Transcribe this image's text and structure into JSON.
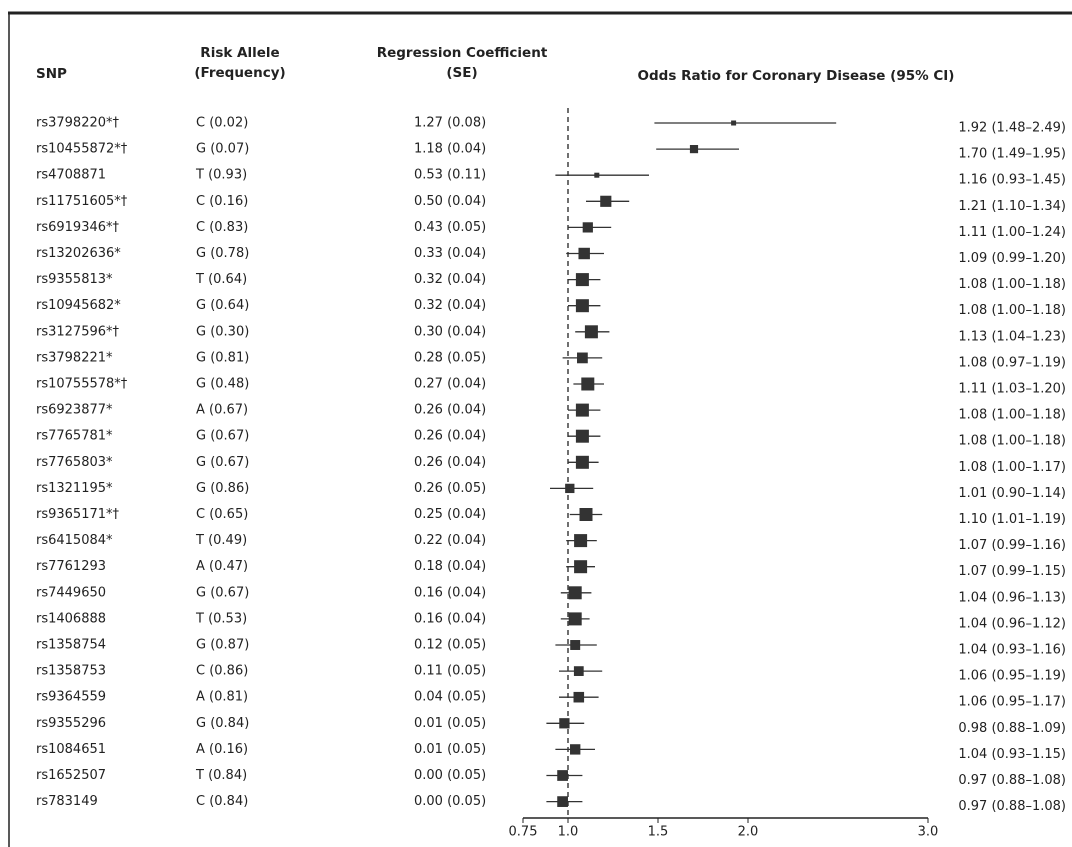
{
  "chart_data": {
    "type": "forest",
    "title": "Odds Ratio for Coronary Disease (95% CI)",
    "headers": {
      "snp": "SNP",
      "allele": [
        "Risk Allele",
        "(Frequency)"
      ],
      "coef": [
        "Regression Coefficient",
        "(SE)"
      ]
    },
    "categories": [
      "rs3798220*†",
      "rs10455872*†",
      "rs4708871",
      "rs11751605*†",
      "rs6919346*†",
      "rs13202636*",
      "rs9355813*",
      "rs10945682*",
      "rs3127596*†",
      "rs3798221*",
      "rs10755578*†",
      "rs6923877*",
      "rs7765781*",
      "rs7765803*",
      "rs1321195*",
      "rs9365171*†",
      "rs6415084*",
      "rs7761293",
      "rs7449650",
      "rs1406888",
      "rs1358754",
      "rs1358753",
      "rs9364559",
      "rs9355296",
      "rs1084651",
      "rs1652507",
      "rs783149"
    ],
    "allele_labels": [
      "C (0.02)",
      "G (0.07)",
      "T (0.93)",
      "C (0.16)",
      "C (0.83)",
      "G (0.78)",
      "T (0.64)",
      "G (0.64)",
      "G (0.30)",
      "G (0.81)",
      "G (0.48)",
      "A (0.67)",
      "G (0.67)",
      "G (0.67)",
      "G (0.86)",
      "C (0.65)",
      "T (0.49)",
      "A (0.47)",
      "G (0.67)",
      "T (0.53)",
      "G (0.87)",
      "C (0.86)",
      "A (0.81)",
      "G (0.84)",
      "A (0.16)",
      "T (0.84)",
      "C (0.84)"
    ],
    "coef_labels": [
      "1.27 (0.08)",
      "1.18 (0.04)",
      "0.53 (0.11)",
      "0.50 (0.04)",
      "0.43 (0.05)",
      "0.33 (0.04)",
      "0.32 (0.04)",
      "0.32 (0.04)",
      "0.30 (0.04)",
      "0.28 (0.05)",
      "0.27 (0.04)",
      "0.26 (0.04)",
      "0.26 (0.04)",
      "0.26 (0.04)",
      "0.26 (0.05)",
      "0.25 (0.04)",
      "0.22 (0.04)",
      "0.18 (0.04)",
      "0.16 (0.04)",
      "0.16 (0.04)",
      "0.12 (0.05)",
      "0.11 (0.05)",
      "0.04 (0.05)",
      "0.01 (0.05)",
      "0.01 (0.05)",
      "0.00 (0.05)",
      "0.00 (0.05)"
    ],
    "values": [
      1.92,
      1.7,
      1.16,
      1.21,
      1.11,
      1.09,
      1.08,
      1.08,
      1.13,
      1.08,
      1.11,
      1.08,
      1.08,
      1.08,
      1.01,
      1.1,
      1.07,
      1.07,
      1.04,
      1.04,
      1.04,
      1.06,
      1.06,
      0.98,
      1.04,
      0.97,
      0.97
    ],
    "lower": [
      1.48,
      1.49,
      0.93,
      1.1,
      1.0,
      0.99,
      1.0,
      1.0,
      1.04,
      0.97,
      1.03,
      1.0,
      1.0,
      1.0,
      0.9,
      1.01,
      0.99,
      0.99,
      0.96,
      0.96,
      0.93,
      0.95,
      0.95,
      0.88,
      0.93,
      0.88,
      0.88
    ],
    "upper": [
      2.49,
      1.95,
      1.45,
      1.34,
      1.24,
      1.2,
      1.18,
      1.18,
      1.23,
      1.19,
      1.2,
      1.18,
      1.18,
      1.17,
      1.14,
      1.19,
      1.16,
      1.15,
      1.13,
      1.12,
      1.16,
      1.19,
      1.17,
      1.09,
      1.15,
      1.08,
      1.08
    ],
    "value_labels": [
      "1.92 (1.48–2.49)",
      "1.70 (1.49–1.95)",
      "1.16 (0.93–1.45)",
      "1.21 (1.10–1.34)",
      "1.11 (1.00–1.24)",
      "1.09 (0.99–1.20)",
      "1.08 (1.00–1.18)",
      "1.08 (1.00–1.18)",
      "1.13 (1.04–1.23)",
      "1.08 (0.97–1.19)",
      "1.11 (1.03–1.20)",
      "1.08 (1.00–1.18)",
      "1.08 (1.00–1.18)",
      "1.08 (1.00–1.17)",
      "1.01 (0.90–1.14)",
      "1.10 (1.01–1.19)",
      "1.07 (0.99–1.16)",
      "1.07 (0.99–1.15)",
      "1.04 (0.96–1.13)",
      "1.04 (0.96–1.12)",
      "1.04 (0.93–1.16)",
      "1.06 (0.95–1.19)",
      "1.06 (0.95–1.17)",
      "0.98 (0.88–1.09)",
      "1.04 (0.93–1.15)",
      "0.97 (0.88–1.08)",
      "0.97 (0.88–1.08)"
    ],
    "color": "#333333",
    "xlim": [
      0.75,
      3
    ],
    "xticks": [
      0.75,
      {
        "value": 1,
        "label": "1.0"
      },
      1.5,
      {
        "value": 2,
        "label": "2.0"
      },
      {
        "value": 3,
        "label": "3.0"
      }
    ]
  }
}
